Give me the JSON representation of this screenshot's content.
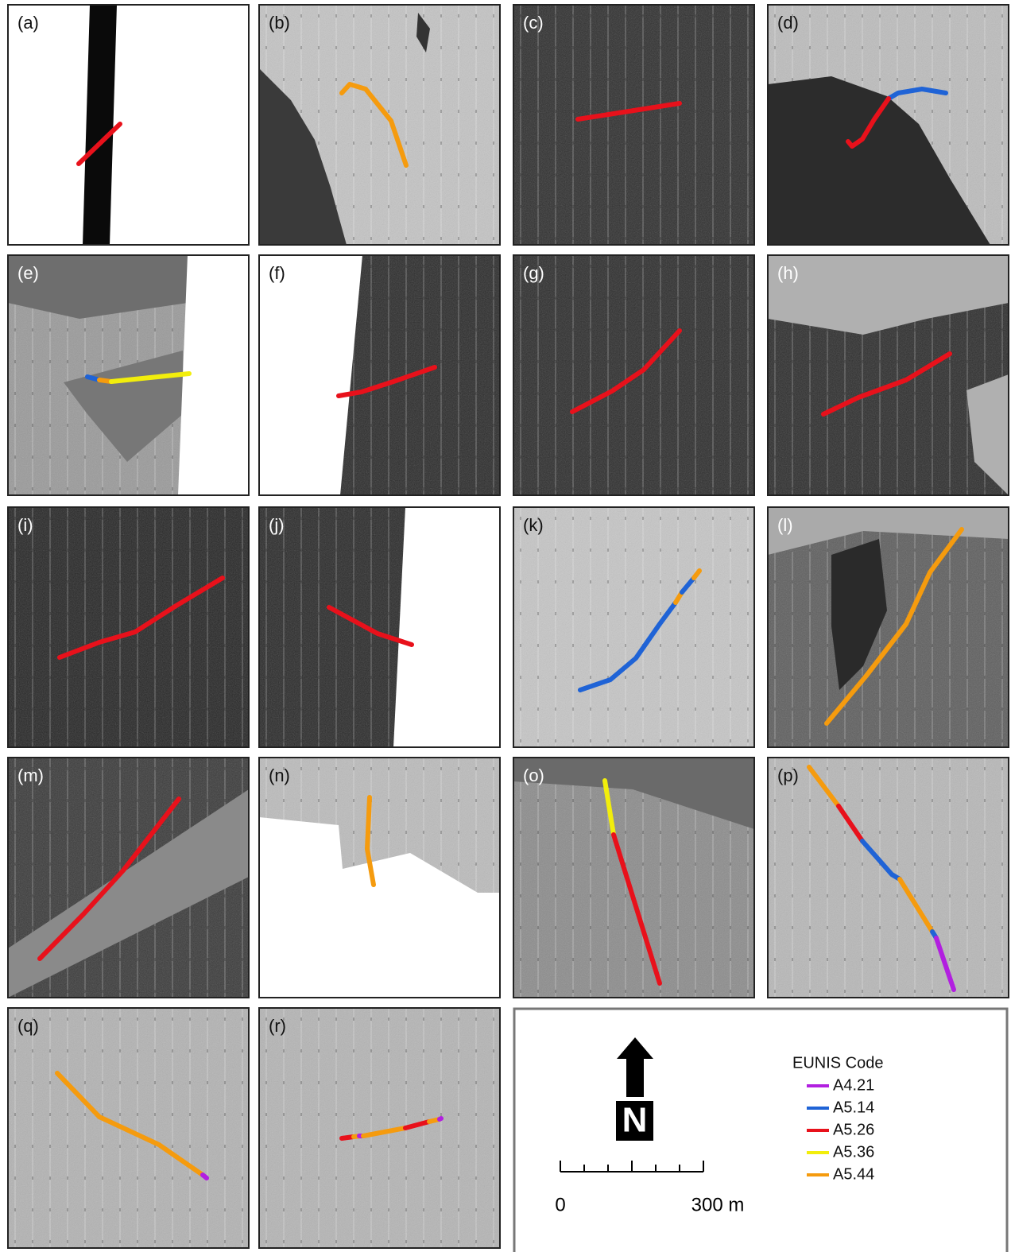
{
  "panels": [
    "(a)",
    "(b)",
    "(c)",
    "(d)",
    "(e)",
    "(f)",
    "(g)",
    "(h)",
    "(i)",
    "(j)",
    "(k)",
    "(l)",
    "(m)",
    "(n)",
    "(o)",
    "(p)",
    "(q)",
    "(r)"
  ],
  "legend": {
    "title": "EUNIS Code",
    "items": [
      {
        "label": "A4.21",
        "color": "#b21fe0"
      },
      {
        "label": "A5.14",
        "color": "#1f63d6"
      },
      {
        "label": "A5.26",
        "color": "#e8111b"
      },
      {
        "label": "A5.36",
        "color": "#f2ee0c"
      },
      {
        "label": "A5.44",
        "color": "#f59b0e"
      }
    ]
  },
  "north": "N",
  "scale_bar": {
    "start": "0",
    "end": "300 m"
  }
}
